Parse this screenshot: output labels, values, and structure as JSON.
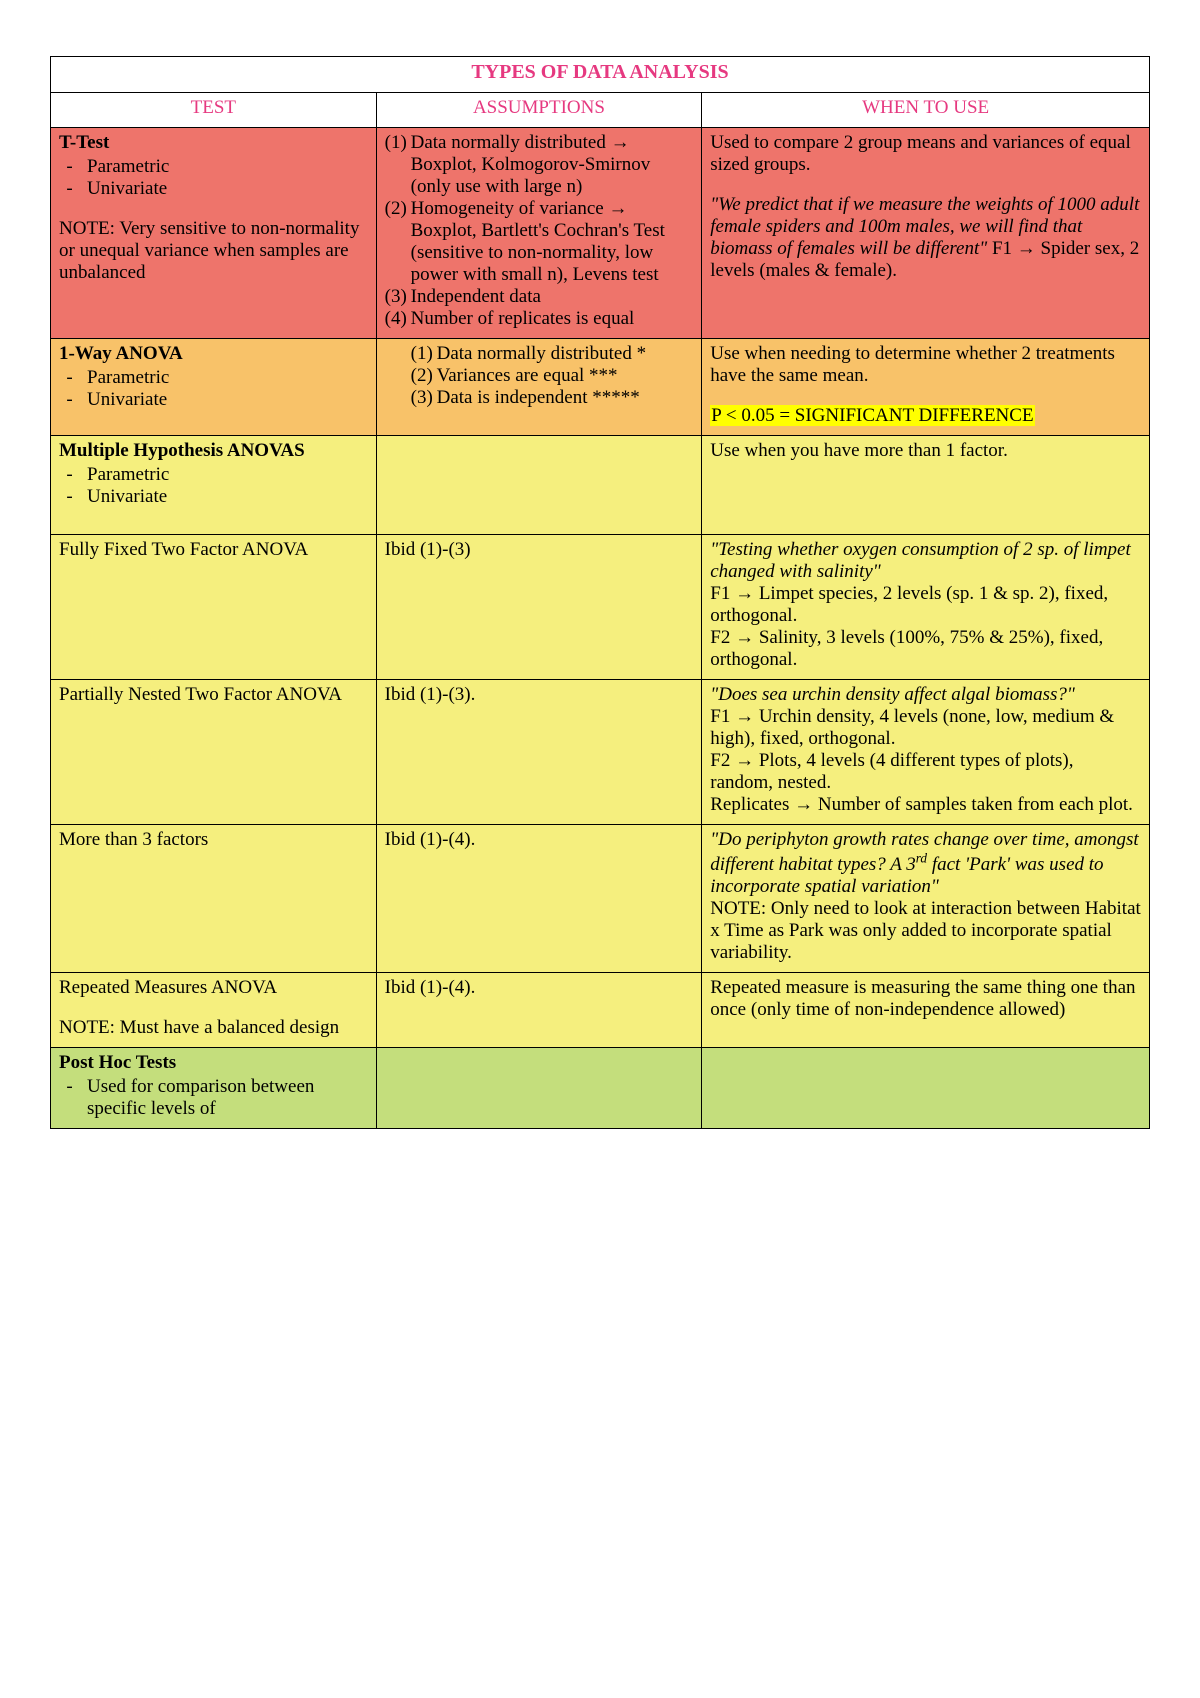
{
  "colors": {
    "accent": "#e63980",
    "row_red": "#ee746b",
    "row_orange": "#f8c269",
    "row_yellow": "#f5ef7e",
    "row_green": "#c4de7c",
    "highlight": "#ffff00",
    "border": "#000000",
    "text": "#000000",
    "page_bg": "#ffffff"
  },
  "typography": {
    "font_family": "Times New Roman",
    "body_fontsize_pt": 14,
    "title_fontsize_pt": 15
  },
  "table": {
    "title": "TYPES OF DATA ANALYSIS",
    "headers": {
      "test": "TEST",
      "assumptions": "ASSUMPTIONS",
      "when": "WHEN TO USE"
    },
    "col_widths_pct": [
      24,
      24,
      33
    ]
  },
  "rows": {
    "r1": {
      "bg": "#ee746b",
      "test_title": "T-Test",
      "test_bullets": [
        "Parametric",
        "Univariate"
      ],
      "test_note": "NOTE: Very sensitive to non-normality or unequal variance when samples are unbalanced",
      "assump": {
        "a1": "Data normally distributed → Boxplot, Kolmogorov-Smirnov (only use with large n)",
        "a2": "Homogeneity of variance → Boxplot, Bartlett's Cochran's Test (sensitive to non-normality, low power with small n), Levens test",
        "a3": "Independent data",
        "a4": "Number of replicates is equal"
      },
      "when_p1": "Used to compare 2 group means and variances of equal sized groups.",
      "when_quote": "\"We predict that if we measure the weights of 1000 adult female spiders and 100m males, we will find that biomass of females will be different\"",
      "when_f1": "F1 → Spider sex, 2 levels (males & female)."
    },
    "r2": {
      "bg": "#f8c269",
      "test_title": "1-Way ANOVA",
      "test_bullets": [
        "Parametric",
        "Univariate"
      ],
      "assump": {
        "a1": "Data normally distributed *",
        "a2": "Variances are equal ***",
        "a3": "Data is independent *****"
      },
      "when_p1": "Use when needing to determine whether 2 treatments have the same mean.",
      "when_hl": "P < 0.05 = SIGNIFICANT DIFFERENCE"
    },
    "r3": {
      "bg": "#f5ef7e",
      "test_title": "Multiple Hypothesis ANOVAS",
      "test_bullets": [
        "Parametric",
        "Univariate"
      ],
      "when": "Use when you have more than 1 factor."
    },
    "r4": {
      "bg": "#f5ef7e",
      "test": "Fully Fixed Two Factor ANOVA",
      "assump": "Ibid (1)-(3)",
      "when_quote": "\"Testing whether oxygen consumption of 2 sp. of limpet changed with salinity\"",
      "when_f1": "F1 → Limpet species, 2 levels (sp. 1 & sp. 2), fixed, orthogonal.",
      "when_f2": "F2 → Salinity, 3 levels (100%, 75% & 25%), fixed, orthogonal."
    },
    "r5": {
      "bg": "#f5ef7e",
      "test": "Partially Nested Two Factor ANOVA",
      "assump": "Ibid (1)-(3).",
      "when_quote": "\"Does sea urchin density affect algal biomass?\"",
      "when_f1": "F1 → Urchin density, 4 levels (none, low, medium & high), fixed, orthogonal.",
      "when_f2": "F2 → Plots, 4 levels (4 different types of plots), random, nested.",
      "when_rep": "Replicates → Number of samples taken from each plot."
    },
    "r6": {
      "bg": "#f5ef7e",
      "test": "More than 3 factors",
      "assump": "Ibid (1)-(4).",
      "when_quote_pre": "\"Do periphyton growth rates change over time, amongst different habitat types? A 3",
      "when_quote_sup": "rd",
      "when_quote_post": " fact 'Park' was used to incorporate spatial variation\"",
      "when_note": "NOTE: Only need to look at interaction between Habitat x Time as Park was only added to incorporate spatial variability."
    },
    "r7": {
      "bg": "#f5ef7e",
      "test": "Repeated Measures ANOVA",
      "test_note": "NOTE: Must have a balanced design",
      "assump": "Ibid (1)-(4).",
      "when": "Repeated measure is measuring the same thing one than once (only time of non-independence allowed)"
    },
    "r8": {
      "bg": "#c4de7c",
      "test_title": "Post Hoc Tests",
      "test_bullet": "Used for comparison between specific levels of"
    }
  }
}
